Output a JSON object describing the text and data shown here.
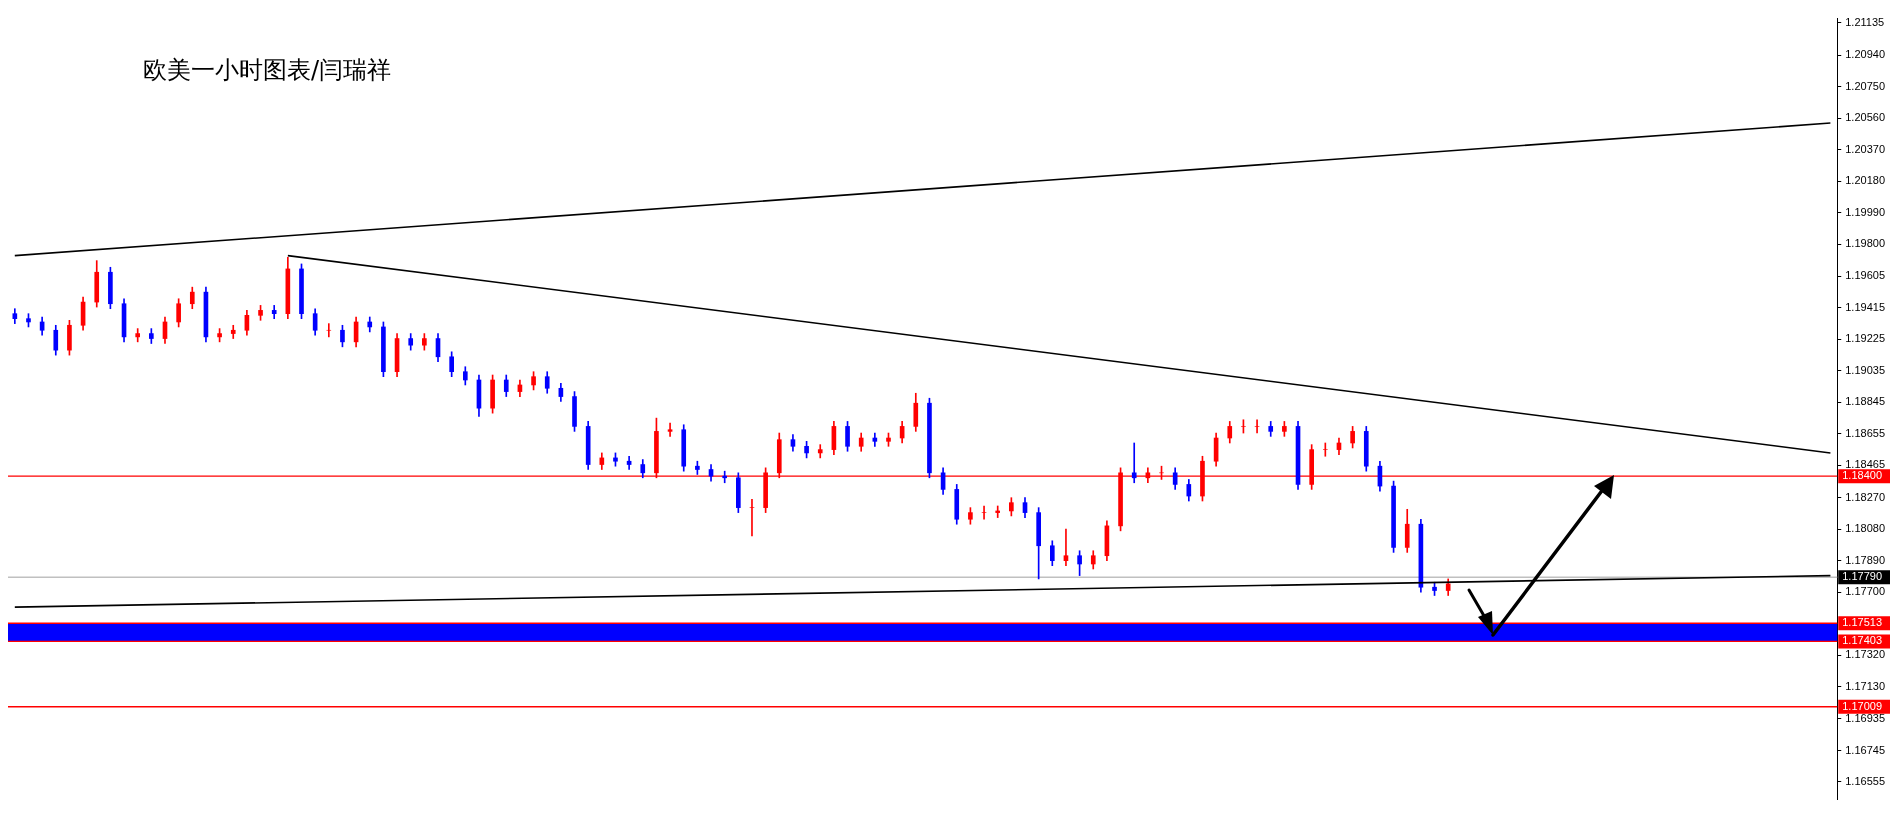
{
  "chart_data": {
    "type": "candlestick",
    "title": "欧美一小时图表/闫瑞祥",
    "categories": [
      null,
      null,
      null,
      null,
      null,
      null,
      null,
      null,
      null,
      null,
      null,
      null,
      null,
      null,
      null,
      null,
      null,
      null,
      null,
      null,
      null,
      null,
      null,
      null,
      null,
      null,
      null,
      null,
      null,
      null,
      null,
      null,
      null,
      null,
      null,
      null,
      null,
      null,
      null,
      null,
      null,
      null,
      null,
      null,
      null,
      null,
      null,
      null,
      null,
      null,
      null,
      null,
      null,
      null,
      null,
      null,
      null,
      null,
      null,
      null,
      null,
      null,
      null,
      null,
      null,
      null,
      null,
      null,
      null,
      null,
      null,
      null,
      null,
      null,
      null,
      null,
      null,
      null,
      null,
      null,
      null,
      null,
      null,
      null,
      null,
      null,
      null,
      null,
      null,
      null,
      null,
      null,
      null,
      null,
      null,
      null,
      null,
      null,
      null,
      null,
      null,
      null,
      null,
      null,
      null,
      null,
      null,
      null,
      null,
      null,
      null,
      null,
      null,
      null,
      null,
      null,
      null,
      null,
      null,
      null,
      null,
      null,
      null,
      null,
      null,
      null,
      null,
      null,
      null,
      null,
      null,
      null,
      null,
      null
    ],
    "ohlc": [
      [
        1.1938,
        1.1941,
        1.1932,
        1.1935
      ],
      [
        1.1935,
        1.1938,
        1.193,
        1.1933
      ],
      [
        1.1933,
        1.1936,
        1.1925,
        1.1928
      ],
      [
        1.1928,
        1.1931,
        1.1913,
        1.1916
      ],
      [
        1.1916,
        1.1934,
        1.1913,
        1.1931
      ],
      [
        1.1931,
        1.1948,
        1.1928,
        1.1945
      ],
      [
        1.1945,
        1.197,
        1.1942,
        1.1963
      ],
      [
        1.1963,
        1.1966,
        1.1941,
        1.1944
      ],
      [
        1.1944,
        1.1947,
        1.1921,
        1.1924
      ],
      [
        1.1924,
        1.1929,
        1.1921,
        1.1926
      ],
      [
        1.1926,
        1.1929,
        1.192,
        1.1923
      ],
      [
        1.1923,
        1.1936,
        1.192,
        1.1933
      ],
      [
        1.1933,
        1.1947,
        1.193,
        1.1944
      ],
      [
        1.1944,
        1.1954,
        1.1941,
        1.1951
      ],
      [
        1.1951,
        1.1954,
        1.1921,
        1.1924
      ],
      [
        1.1924,
        1.1929,
        1.1921,
        1.1926
      ],
      [
        1.1926,
        1.1931,
        1.1923,
        1.1928
      ],
      [
        1.1928,
        1.194,
        1.1925,
        1.1937
      ],
      [
        1.1937,
        1.1943,
        1.1934,
        1.194
      ],
      [
        1.194,
        1.1943,
        1.1935,
        1.1938
      ],
      [
        1.1938,
        1.1972,
        1.1935,
        1.1965
      ],
      [
        1.1965,
        1.1968,
        1.1935,
        1.1938
      ],
      [
        1.1938,
        1.1941,
        1.1925,
        1.1928
      ],
      [
        1.1928,
        1.1932,
        1.1924,
        1.1928
      ],
      [
        1.1928,
        1.1931,
        1.1918,
        1.1921
      ],
      [
        1.1921,
        1.1936,
        1.1918,
        1.1933
      ],
      [
        1.1933,
        1.1936,
        1.1927,
        1.193
      ],
      [
        1.193,
        1.1933,
        1.19,
        1.1903
      ],
      [
        1.1903,
        1.1926,
        1.19,
        1.1923
      ],
      [
        1.1923,
        1.1926,
        1.1916,
        1.1919
      ],
      [
        1.1919,
        1.1926,
        1.1916,
        1.1923
      ],
      [
        1.1923,
        1.1926,
        1.1909,
        1.1912
      ],
      [
        1.1912,
        1.1915,
        1.19,
        1.1903
      ],
      [
        1.1903,
        1.1906,
        1.1895,
        1.1898
      ],
      [
        1.1898,
        1.1901,
        1.1876,
        1.1881
      ],
      [
        1.1881,
        1.1901,
        1.1878,
        1.1898
      ],
      [
        1.1898,
        1.1901,
        1.1888,
        1.1891
      ],
      [
        1.1891,
        1.1898,
        1.1888,
        1.1895
      ],
      [
        1.1895,
        1.1903,
        1.1892,
        1.19
      ],
      [
        1.19,
        1.1903,
        1.189,
        1.1893
      ],
      [
        1.1893,
        1.1896,
        1.1885,
        1.1888
      ],
      [
        1.1888,
        1.1891,
        1.1867,
        1.187
      ],
      [
        1.187,
        1.1873,
        1.1844,
        1.1847
      ],
      [
        1.1847,
        1.1854,
        1.1844,
        1.1851
      ],
      [
        1.1851,
        1.1854,
        1.1846,
        1.1849
      ],
      [
        1.1849,
        1.1852,
        1.1844,
        1.1847
      ],
      [
        1.1847,
        1.185,
        1.1839,
        1.1842
      ],
      [
        1.1842,
        1.1875,
        1.1839,
        1.1867
      ],
      [
        1.1867,
        1.1872,
        1.1864,
        1.1868
      ],
      [
        1.1868,
        1.1871,
        1.1843,
        1.1846
      ],
      [
        1.1846,
        1.1849,
        1.1841,
        1.1844
      ],
      [
        1.1844,
        1.1847,
        1.1837,
        1.184
      ],
      [
        1.184,
        1.1843,
        1.1836,
        1.1839
      ],
      [
        1.1839,
        1.1842,
        1.1818,
        1.1821
      ],
      [
        1.1821,
        1.1826,
        1.1804,
        1.1821
      ],
      [
        1.1821,
        1.1845,
        1.1818,
        1.1842
      ],
      [
        1.1842,
        1.1866,
        1.1839,
        1.1862
      ],
      [
        1.1862,
        1.1865,
        1.1855,
        1.1858
      ],
      [
        1.1858,
        1.1861,
        1.1851,
        1.1854
      ],
      [
        1.1854,
        1.1859,
        1.1851,
        1.1856
      ],
      [
        1.1856,
        1.1873,
        1.1853,
        1.187
      ],
      [
        1.187,
        1.1873,
        1.1855,
        1.1858
      ],
      [
        1.1858,
        1.1866,
        1.1855,
        1.1863
      ],
      [
        1.1863,
        1.1866,
        1.1858,
        1.1861
      ],
      [
        1.1861,
        1.1866,
        1.1858,
        1.1863
      ],
      [
        1.1863,
        1.1873,
        1.186,
        1.187
      ],
      [
        1.187,
        1.189,
        1.1867,
        1.1884
      ],
      [
        1.1884,
        1.1887,
        1.1839,
        1.1842
      ],
      [
        1.1842,
        1.1845,
        1.1829,
        1.1832
      ],
      [
        1.1832,
        1.1835,
        1.1811,
        1.1814
      ],
      [
        1.1814,
        1.1821,
        1.1811,
        1.1818
      ],
      [
        1.1818,
        1.1822,
        1.1814,
        1.1818
      ],
      [
        1.1818,
        1.1822,
        1.1815,
        1.1819
      ],
      [
        1.1819,
        1.1827,
        1.1816,
        1.1824
      ],
      [
        1.1824,
        1.1827,
        1.1815,
        1.1818
      ],
      [
        1.1818,
        1.1821,
        1.1778,
        1.1798
      ],
      [
        1.1798,
        1.1801,
        1.1786,
        1.1789
      ],
      [
        1.1789,
        1.1808,
        1.1786,
        1.1792
      ],
      [
        1.1792,
        1.1795,
        1.178,
        1.1787
      ],
      [
        1.1787,
        1.1795,
        1.1784,
        1.1792
      ],
      [
        1.1792,
        1.1813,
        1.1789,
        1.181
      ],
      [
        1.181,
        1.1845,
        1.1807,
        1.1842
      ],
      [
        1.1842,
        1.186,
        1.1836,
        1.1839
      ],
      [
        1.1839,
        1.1845,
        1.1836,
        1.1842
      ],
      [
        1.1842,
        1.1846,
        1.1838,
        1.1842
      ],
      [
        1.1842,
        1.1845,
        1.1832,
        1.1835
      ],
      [
        1.1835,
        1.1838,
        1.1825,
        1.1828
      ],
      [
        1.1828,
        1.1852,
        1.1825,
        1.1849
      ],
      [
        1.1849,
        1.1866,
        1.1846,
        1.1863
      ],
      [
        1.1863,
        1.1873,
        1.186,
        1.187
      ],
      [
        1.187,
        1.1874,
        1.1866,
        1.187
      ],
      [
        1.187,
        1.1874,
        1.1866,
        1.187
      ],
      [
        1.187,
        1.1873,
        1.1864,
        1.1867
      ],
      [
        1.1867,
        1.1873,
        1.1864,
        1.187
      ],
      [
        1.187,
        1.1873,
        1.1832,
        1.1835
      ],
      [
        1.1835,
        1.1859,
        1.1832,
        1.1856
      ],
      [
        1.1856,
        1.186,
        1.1852,
        1.1856
      ],
      [
        1.1856,
        1.1863,
        1.1853,
        1.186
      ],
      [
        1.186,
        1.187,
        1.1857,
        1.1867
      ],
      [
        1.1867,
        1.187,
        1.1843,
        1.1846
      ],
      [
        1.1846,
        1.1849,
        1.1831,
        1.1834
      ],
      [
        1.1834,
        1.1837,
        1.1794,
        1.1797
      ],
      [
        1.1797,
        1.182,
        1.1794,
        1.1811
      ],
      [
        1.1811,
        1.1814,
        1.177,
        1.1773
      ],
      [
        1.1773,
        1.1776,
        1.1768,
        1.1771
      ],
      [
        1.1771,
        1.1778,
        1.1768,
        1.1775
      ],
      null,
      null,
      null,
      null,
      null,
      null,
      null,
      null,
      null,
      null,
      null,
      null,
      null,
      null,
      null,
      null,
      null,
      null,
      null,
      null,
      null,
      null,
      null,
      null,
      null,
      null,
      null,
      null
    ],
    "colors": [
      "#0000ff",
      "#0000ff",
      "#0000ff",
      "#0000ff",
      "#ff0000",
      "#ff0000",
      "#ff0000",
      "#0000ff",
      "#0000ff",
      "#ff0000",
      "#0000ff",
      "#ff0000",
      "#ff0000",
      "#ff0000",
      "#0000ff",
      "#ff0000",
      "#ff0000",
      "#ff0000",
      "#ff0000",
      "#0000ff",
      "#ff0000",
      "#0000ff",
      "#0000ff",
      "#ff0000",
      "#0000ff",
      "#ff0000",
      "#0000ff",
      "#0000ff",
      "#ff0000",
      "#0000ff",
      "#ff0000",
      "#0000ff",
      "#0000ff",
      "#0000ff",
      "#0000ff",
      "#ff0000",
      "#0000ff",
      "#ff0000",
      "#ff0000",
      "#0000ff",
      "#0000ff",
      "#0000ff",
      "#0000ff",
      "#ff0000",
      "#0000ff",
      "#0000ff",
      "#0000ff",
      "#ff0000",
      "#ff0000",
      "#0000ff",
      "#0000ff",
      "#0000ff",
      "#0000ff",
      "#0000ff",
      "#ff0000",
      "#ff0000",
      "#ff0000",
      "#0000ff",
      "#0000ff",
      "#ff0000",
      "#ff0000",
      "#0000ff",
      "#ff0000",
      "#0000ff",
      "#ff0000",
      "#ff0000",
      "#ff0000",
      "#0000ff",
      "#0000ff",
      "#0000ff",
      "#ff0000",
      "#ff0000",
      "#ff0000",
      "#ff0000",
      "#0000ff",
      "#0000ff",
      "#0000ff",
      "#ff0000",
      "#0000ff",
      "#ff0000",
      "#ff0000",
      "#ff0000",
      "#0000ff",
      "#ff0000",
      "#ff0000",
      "#0000ff",
      "#0000ff",
      "#ff0000",
      "#ff0000",
      "#ff0000",
      "#ff0000",
      "#ff0000",
      "#0000ff",
      "#ff0000",
      "#0000ff",
      "#ff0000",
      "#ff0000",
      "#ff0000",
      "#ff0000",
      "#0000ff",
      "#0000ff",
      "#0000ff",
      "#ff0000",
      "#0000ff",
      "#0000ff",
      "#ff0000",
      null,
      null,
      null,
      null,
      null,
      null,
      null,
      null,
      null,
      null,
      null,
      null,
      null,
      null,
      null,
      null,
      null,
      null,
      null,
      null,
      null,
      null,
      null,
      null,
      null,
      null,
      null,
      null
    ],
    "series": [
      {
        "type": "line",
        "color": "#000000",
        "values": [
          1.1973,
          null,
          null,
          null,
          null,
          null,
          null,
          null,
          null,
          null,
          null,
          null,
          null,
          null,
          null,
          null,
          null,
          null,
          null,
          null,
          null,
          null,
          null,
          null,
          null,
          null,
          null,
          null,
          null,
          null,
          null,
          null,
          null,
          null,
          null,
          null,
          null,
          null,
          null,
          null,
          null,
          null,
          null,
          null,
          null,
          null,
          null,
          null,
          null,
          null,
          null,
          null,
          null,
          null,
          null,
          null,
          null,
          null,
          null,
          null,
          null,
          null,
          null,
          null,
          null,
          null,
          null,
          null,
          null,
          null,
          null,
          null,
          null,
          null,
          null,
          null,
          null,
          null,
          null,
          null,
          null,
          null,
          null,
          null,
          null,
          null,
          null,
          null,
          null,
          null,
          null,
          null,
          null,
          null,
          null,
          null,
          null,
          null,
          null,
          null,
          null,
          null,
          null,
          null,
          null,
          null,
          null,
          null,
          null,
          null,
          null,
          null,
          null,
          null,
          null,
          null,
          null,
          null,
          null,
          null,
          null,
          null,
          null,
          null,
          null,
          null,
          null,
          null,
          null,
          null,
          null,
          null,
          null,
          1.2053
        ]
      },
      {
        "type": "line",
        "color": "#000000",
        "values": [
          null,
          null,
          null,
          null,
          null,
          null,
          null,
          null,
          null,
          null,
          null,
          null,
          null,
          null,
          null,
          null,
          null,
          null,
          null,
          null,
          1.1973,
          null,
          null,
          null,
          null,
          null,
          null,
          null,
          null,
          null,
          null,
          null,
          null,
          null,
          null,
          null,
          null,
          null,
          null,
          null,
          null,
          null,
          null,
          null,
          null,
          null,
          null,
          null,
          null,
          null,
          null,
          null,
          null,
          null,
          null,
          null,
          null,
          null,
          null,
          null,
          null,
          null,
          null,
          null,
          null,
          null,
          null,
          null,
          null,
          null,
          null,
          null,
          null,
          null,
          null,
          null,
          null,
          null,
          null,
          null,
          null,
          null,
          null,
          null,
          null,
          null,
          null,
          null,
          null,
          null,
          null,
          null,
          null,
          null,
          null,
          null,
          null,
          null,
          null,
          null,
          null,
          null,
          null,
          null,
          null,
          null,
          null,
          null,
          null,
          null,
          null,
          null,
          null,
          null,
          null,
          null,
          null,
          null,
          null,
          null,
          null,
          null,
          null,
          null,
          null,
          null,
          null,
          null,
          null,
          null,
          null,
          null,
          null,
          1.1854
        ]
      },
      {
        "type": "line",
        "color": "#000000",
        "values": [
          1.1761,
          null,
          null,
          null,
          null,
          null,
          null,
          null,
          null,
          null,
          null,
          null,
          null,
          null,
          null,
          null,
          null,
          null,
          null,
          null,
          null,
          null,
          null,
          null,
          null,
          null,
          null,
          null,
          null,
          null,
          null,
          null,
          null,
          null,
          null,
          null,
          null,
          null,
          null,
          null,
          null,
          null,
          null,
          null,
          null,
          null,
          null,
          null,
          null,
          null,
          null,
          null,
          null,
          null,
          null,
          null,
          null,
          null,
          null,
          null,
          null,
          null,
          null,
          null,
          null,
          null,
          null,
          null,
          null,
          null,
          null,
          null,
          null,
          null,
          null,
          null,
          null,
          null,
          null,
          null,
          null,
          null,
          null,
          null,
          null,
          null,
          null,
          null,
          null,
          null,
          null,
          null,
          null,
          null,
          null,
          null,
          null,
          null,
          null,
          null,
          null,
          null,
          null,
          null,
          null,
          null,
          null,
          null,
          null,
          null,
          null,
          null,
          null,
          null,
          null,
          null,
          null,
          null,
          null,
          null,
          null,
          null,
          null,
          null,
          null,
          null,
          null,
          null,
          null,
          null,
          null,
          null,
          null,
          1.178
        ]
      }
    ],
    "ylim": [
      1.1645,
      1.2116
    ],
    "yticks": [
      {
        "value": 1.21135,
        "label": "1.21135"
      },
      {
        "value": 1.2094,
        "label": "1.20940"
      },
      {
        "value": 1.2075,
        "label": "1.20750"
      },
      {
        "value": 1.2056,
        "label": "1.20560"
      },
      {
        "value": 1.2037,
        "label": "1.20370"
      },
      {
        "value": 1.2018,
        "label": "1.20180"
      },
      {
        "value": 1.1999,
        "label": "1.19990"
      },
      {
        "value": 1.198,
        "label": "1.19800"
      },
      {
        "value": 1.19605,
        "label": "1.19605"
      },
      {
        "value": 1.19415,
        "label": "1.19415"
      },
      {
        "value": 1.19225,
        "label": "1.19225"
      },
      {
        "value": 1.19035,
        "label": "1.19035"
      },
      {
        "value": 1.18845,
        "label": "1.18845"
      },
      {
        "value": 1.18655,
        "label": "1.18655"
      },
      {
        "value": 1.18465,
        "label": "1.18465"
      },
      {
        "value": 1.1827,
        "label": "1.18270"
      },
      {
        "value": 1.1808,
        "label": "1.18080"
      },
      {
        "value": 1.1789,
        "label": "1.17890"
      },
      {
        "value": 1.177,
        "label": "1.17700"
      },
      {
        "value": 1.1732,
        "label": "1.17320"
      },
      {
        "value": 1.1713,
        "label": "1.17130"
      },
      {
        "value": 1.16935,
        "label": "1.16935"
      },
      {
        "value": 1.16745,
        "label": "1.16745"
      },
      {
        "value": 1.16555,
        "label": "1.16555"
      }
    ],
    "ref_lines": [
      {
        "axis": "y",
        "value": 1.184,
        "label": "1.18400",
        "color": "#ff0000"
      },
      {
        "axis": "y",
        "value": 1.1779,
        "label": "1.17790",
        "color": "#c0c0c0"
      },
      {
        "axis": "y",
        "value": 1.17513,
        "label": "1.17513",
        "color": "#ff0000"
      },
      {
        "axis": "y",
        "value": 1.17403,
        "label": "1.17403",
        "color": "#ff0000"
      },
      {
        "axis": "y",
        "value": 1.17009,
        "label": "1.17009",
        "color": "#ff0000"
      }
    ],
    "bands": [
      {
        "axis": "y",
        "from": 1.17403,
        "to": 1.17513,
        "color": "#0000ff"
      }
    ],
    "tick_labels": "y"
  }
}
